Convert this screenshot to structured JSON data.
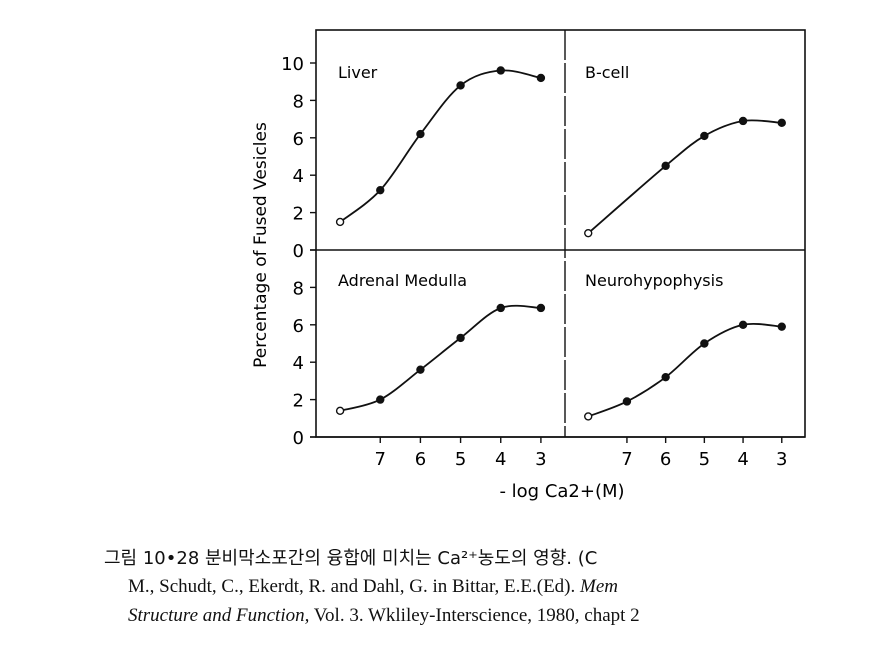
{
  "chart_data": {
    "type": "line",
    "ylabel": "Percentage of Fused Vesicles",
    "xlabel": "- log Ca2+(M)",
    "x_ticks": [
      7,
      6,
      5,
      4,
      3
    ],
    "xlim": [
      8.6,
      2.4
    ],
    "panels": [
      {
        "title": "Liver",
        "y_ticks": [
          0,
          2,
          4,
          6,
          8,
          10
        ],
        "ylim": [
          0,
          11.8
        ],
        "x": [
          8,
          7,
          6,
          5,
          4,
          3
        ],
        "y": [
          1.5,
          3.2,
          6.2,
          8.8,
          9.6,
          9.2
        ],
        "open_first": true
      },
      {
        "title": "B-cell",
        "y_ticks": [],
        "ylim": [
          0,
          11.8
        ],
        "x": [
          8,
          6,
          5,
          4,
          3
        ],
        "y": [
          0.9,
          4.5,
          6.1,
          6.9,
          6.8
        ],
        "open_first": true
      },
      {
        "title": "Adrenal Medulla",
        "y_ticks": [
          0,
          2,
          4,
          6,
          8
        ],
        "ylim": [
          0,
          10
        ],
        "x": [
          8,
          7,
          6,
          5,
          4,
          3
        ],
        "y": [
          1.4,
          2.0,
          3.6,
          5.3,
          6.9,
          6.9
        ],
        "open_first": true
      },
      {
        "title": "Neurohypophysis",
        "y_ticks": [],
        "ylim": [
          0,
          10
        ],
        "x": [
          8,
          7,
          6,
          5,
          4,
          3
        ],
        "y": [
          1.1,
          1.9,
          3.2,
          5.0,
          6.0,
          5.9
        ],
        "open_first": true
      }
    ]
  },
  "caption": {
    "line1": "그림 10•28  분비막소포간의 융합에 미치는 Ca²⁺농도의 영향.  (C",
    "line2": "M., Schudt, C., Ekerdt, R. and Dahl, G. in Bittar, E.E.(Ed). ",
    "line2_italic": "Mem",
    "line3_italic": "Structure and Function,",
    "line3": " Vol. 3. Wkliley-Interscience, 1980, chapt 2"
  }
}
